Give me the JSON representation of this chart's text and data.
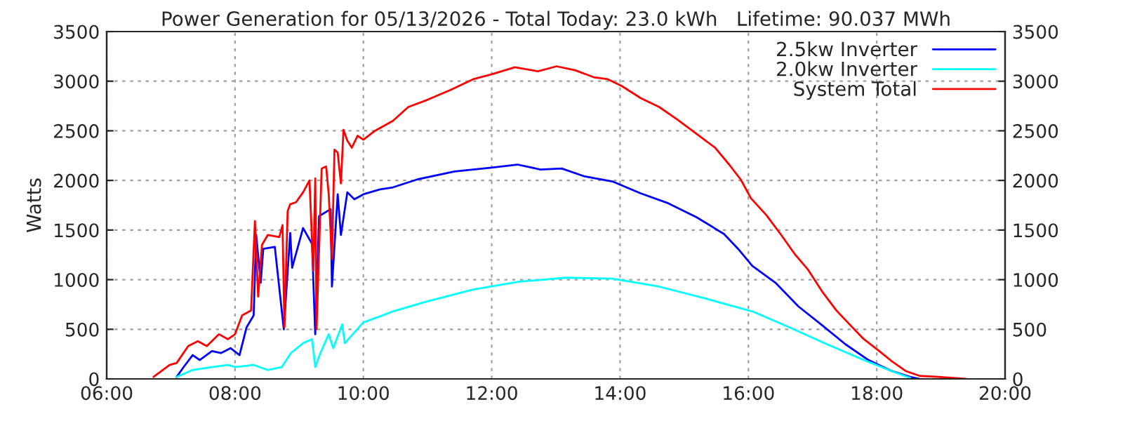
{
  "chart_data": {
    "type": "line",
    "title": "Power Generation for 05/13/2026 - Total Today: 23.0 kWh   Lifetime: 90.037 MWh",
    "ylabel": "Watts",
    "xlim": [
      6,
      20
    ],
    "xticks": [
      {
        "value": 6,
        "label": "06:00"
      },
      {
        "value": 8,
        "label": "08:00"
      },
      {
        "value": 10,
        "label": "10:00"
      },
      {
        "value": 12,
        "label": "12:00"
      },
      {
        "value": 14,
        "label": "14:00"
      },
      {
        "value": 16,
        "label": "16:00"
      },
      {
        "value": 18,
        "label": "18:00"
      },
      {
        "value": 20,
        "label": "20:00"
      }
    ],
    "ylim": [
      0,
      3500
    ],
    "yticks": [
      0,
      500,
      1000,
      1500,
      2000,
      2500,
      3000,
      3500
    ],
    "y2lim": [
      0,
      3500
    ],
    "y2ticks": [
      0,
      500,
      1000,
      1500,
      2000,
      2500,
      3000,
      3500
    ],
    "grid": true,
    "legend": "top right",
    "line_style": "solid",
    "marker": "none",
    "series": [
      {
        "name": "2.5kw Inverter",
        "color": "#0000ff",
        "x": [
          7.09,
          7.2,
          7.34,
          7.45,
          7.64,
          7.78,
          7.93,
          8.07,
          8.18,
          8.29,
          8.33,
          8.4,
          8.44,
          8.62,
          8.76,
          8.86,
          8.89,
          9.06,
          9.2,
          9.25,
          9.31,
          9.49,
          9.51,
          9.6,
          9.65,
          9.75,
          9.86,
          10.0,
          10.26,
          10.46,
          10.84,
          11.42,
          12.0,
          12.4,
          12.76,
          13.09,
          13.45,
          13.88,
          14.32,
          14.75,
          15.19,
          15.62,
          15.84,
          16.06,
          16.42,
          16.78,
          17.15,
          17.51,
          17.87,
          18.23,
          18.52,
          18.67
        ],
        "values": [
          20,
          120,
          240,
          190,
          280,
          260,
          310,
          240,
          520,
          640,
          1450,
          970,
          1310,
          1330,
          500,
          1470,
          1120,
          1520,
          1360,
          450,
          1640,
          1710,
          930,
          1860,
          1450,
          1880,
          1810,
          1860,
          1910,
          1930,
          2010,
          2090,
          2130,
          2160,
          2110,
          2120,
          2040,
          1990,
          1870,
          1770,
          1630,
          1460,
          1310,
          1140,
          970,
          730,
          540,
          350,
          190,
          80,
          20,
          0
        ]
      },
      {
        "name": "2.0kw Inverter",
        "color": "#00ffff",
        "x": [
          7.09,
          7.34,
          7.64,
          7.89,
          8.0,
          8.29,
          8.51,
          8.73,
          8.87,
          9.06,
          9.2,
          9.25,
          9.33,
          9.46,
          9.53,
          9.67,
          9.71,
          10.0,
          10.26,
          10.46,
          10.99,
          11.71,
          12.43,
          13.16,
          13.88,
          14.61,
          15.33,
          16.06,
          16.64,
          17.22,
          17.8,
          18.23,
          18.52
        ],
        "values": [
          20,
          90,
          120,
          140,
          120,
          140,
          90,
          120,
          260,
          360,
          400,
          120,
          260,
          450,
          310,
          550,
          360,
          570,
          630,
          680,
          780,
          900,
          980,
          1020,
          1010,
          930,
          810,
          680,
          520,
          350,
          190,
          80,
          10
        ]
      },
      {
        "name": "System Total",
        "color": "#ff0000",
        "x": [
          6.73,
          6.98,
          7.09,
          7.27,
          7.42,
          7.56,
          7.75,
          7.89,
          8.0,
          8.11,
          8.25,
          8.31,
          8.36,
          8.42,
          8.51,
          8.69,
          8.74,
          8.77,
          8.82,
          8.86,
          8.95,
          9.06,
          9.16,
          9.22,
          9.25,
          9.27,
          9.35,
          9.42,
          9.46,
          9.51,
          9.55,
          9.6,
          9.65,
          9.69,
          9.75,
          9.82,
          9.91,
          10.0,
          10.18,
          10.46,
          10.7,
          10.99,
          11.35,
          11.71,
          12.0,
          12.36,
          12.72,
          13.01,
          13.3,
          13.59,
          13.81,
          14.03,
          14.32,
          14.61,
          14.9,
          15.19,
          15.48,
          15.7,
          15.88,
          16.04,
          16.28,
          16.5,
          16.72,
          16.93,
          17.15,
          17.37,
          17.59,
          17.8,
          18.04,
          18.23,
          18.45,
          18.67,
          18.96,
          19.39
        ],
        "values": [
          20,
          140,
          160,
          330,
          380,
          330,
          450,
          400,
          450,
          640,
          690,
          1590,
          830,
          1350,
          1450,
          1430,
          1550,
          520,
          1690,
          1760,
          1780,
          1880,
          2000,
          1090,
          2020,
          500,
          2120,
          2140,
          1860,
          1210,
          2310,
          2280,
          1970,
          2510,
          2400,
          2330,
          2450,
          2410,
          2500,
          2600,
          2740,
          2810,
          2910,
          3020,
          3070,
          3140,
          3100,
          3150,
          3110,
          3040,
          3020,
          2950,
          2830,
          2740,
          2610,
          2470,
          2330,
          2160,
          2010,
          1820,
          1650,
          1460,
          1260,
          1100,
          880,
          690,
          540,
          400,
          280,
          180,
          80,
          30,
          20,
          0
        ]
      }
    ]
  }
}
